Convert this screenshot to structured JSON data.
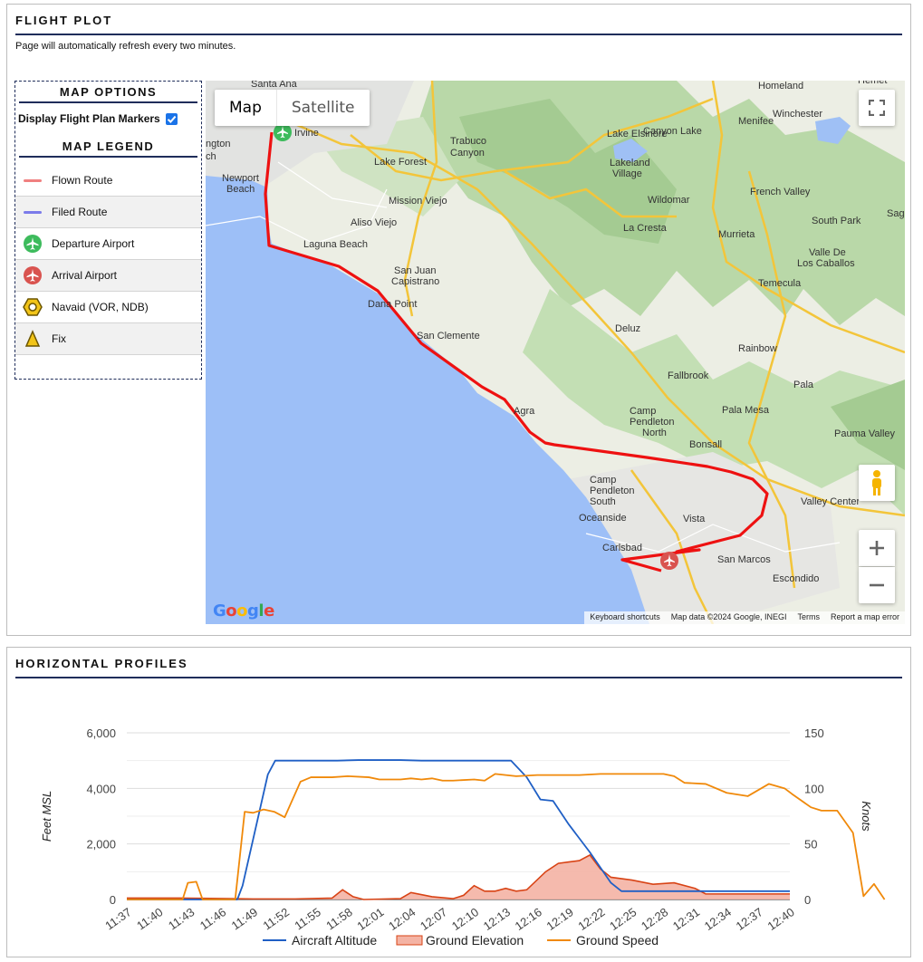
{
  "flight_plot": {
    "title": "FLIGHT PLOT",
    "refresh_note": "Page will automatically refresh every two minutes."
  },
  "sidebar": {
    "options_title": "MAP OPTIONS",
    "display_markers_label": "Display Flight Plan Markers",
    "display_markers_checked": true,
    "legend_title": "MAP LEGEND",
    "legend": [
      {
        "label": "Flown Route",
        "icon": "flown-route-line",
        "color": "#f08080"
      },
      {
        "label": "Filed Route",
        "icon": "filed-route-line",
        "color": "#7b7bea"
      },
      {
        "label": "Departure Airport",
        "icon": "departure-airport-icon",
        "color": "#3dbb5c"
      },
      {
        "label": "Arrival Airport",
        "icon": "arrival-airport-icon",
        "color": "#d9534f"
      },
      {
        "label": "Navaid (VOR, NDB)",
        "icon": "navaid-icon",
        "color": "#f2c418"
      },
      {
        "label": "Fix",
        "icon": "fix-icon",
        "color": "#f2c418"
      }
    ]
  },
  "map": {
    "map_type_options": [
      "Map",
      "Satellite"
    ],
    "selected_map_type": "Map",
    "route_color": "#ee1111",
    "footer": [
      "Keyboard shortcuts",
      "Map data ©2024 Google, INEGI",
      "Terms",
      "Report a map error"
    ],
    "logo_text": "Google",
    "places": [
      "Santa Ana",
      "Irvine",
      "Homeland",
      "Menifee",
      "Winchester",
      "Hemet",
      "Newport Beach",
      "Lake Forest",
      "Trabuco Canyon",
      "Lake Elsinore",
      "Canyon Lake",
      "Lakeland Village",
      "Mission Viejo",
      "Aliso Viejo",
      "Laguna Beach",
      "Wildomar",
      "French Valley",
      "South Park",
      "Lake Forest",
      "La Cresta",
      "Murrieta",
      "Valle De Los Caballos",
      "San Juan Capistrano",
      "Dana Point",
      "Temecula",
      "San Clemente",
      "Deluz",
      "Rainbow",
      "Fallbrook",
      "Pala",
      "Pala Mesa",
      "Camp Pendleton North",
      "Agra",
      "Bonsall",
      "Pauma Valley",
      "Camp Pendleton South",
      "Oceanside",
      "Valley Center",
      "Vista",
      "Carlsbad",
      "San Marcos",
      "Escondido",
      "Sag",
      "ngton",
      "ch"
    ]
  },
  "profiles": {
    "title": "HORIZONTAL PROFILES"
  },
  "chart_data": {
    "type": "line",
    "x": [
      "11:37",
      "11:40",
      "11:43",
      "11:46",
      "11:49",
      "11:52",
      "11:55",
      "11:58",
      "12:01",
      "12:04",
      "12:07",
      "12:10",
      "12:13",
      "12:16",
      "12:19",
      "12:22",
      "12:25",
      "12:28",
      "12:31",
      "12:34",
      "12:37",
      "12:40"
    ],
    "y_left_label": "Feet MSL",
    "y_right_label": "Knots",
    "y_left_ticks": [
      "0",
      "2,000",
      "4,000",
      "6,000"
    ],
    "y_right_ticks": [
      "0",
      "50",
      "100",
      "150"
    ],
    "y_left_range": [
      0,
      6000
    ],
    "y_right_range": [
      0,
      150
    ],
    "series": [
      {
        "name": "Aircraft Altitude",
        "axis": "left",
        "color": "#1f5fc5",
        "points": [
          [
            0,
            0
          ],
          [
            10.5,
            0
          ],
          [
            11.0,
            500
          ],
          [
            13.4,
            4500
          ],
          [
            14.1,
            5000
          ],
          [
            15,
            5000
          ],
          [
            20,
            5000
          ],
          [
            22,
            5020
          ],
          [
            26,
            5020
          ],
          [
            28,
            5000
          ],
          [
            32,
            5000
          ],
          [
            34,
            5000
          ],
          [
            36.5,
            5000
          ],
          [
            38,
            4400
          ],
          [
            39.3,
            3600
          ],
          [
            40.5,
            3550
          ],
          [
            42,
            2700
          ],
          [
            44,
            1700
          ],
          [
            46,
            600
          ],
          [
            47,
            300
          ],
          [
            51,
            300
          ],
          [
            56,
            300
          ],
          [
            63,
            300
          ]
        ]
      },
      {
        "name": "Ground Elevation",
        "axis": "left",
        "color": "#d84315",
        "fill": "#f4b3a4",
        "points": [
          [
            0,
            50
          ],
          [
            5,
            50
          ],
          [
            10,
            30
          ],
          [
            12,
            20
          ],
          [
            16,
            20
          ],
          [
            19.5,
            50
          ],
          [
            20.5,
            350
          ],
          [
            21.5,
            100
          ],
          [
            22.5,
            0
          ],
          [
            26,
            30
          ],
          [
            27,
            250
          ],
          [
            29,
            100
          ],
          [
            31,
            30
          ],
          [
            32,
            150
          ],
          [
            33,
            500
          ],
          [
            34,
            300
          ],
          [
            35,
            300
          ],
          [
            36,
            400
          ],
          [
            37,
            300
          ],
          [
            38,
            350
          ],
          [
            39.8,
            1000
          ],
          [
            41,
            1300
          ],
          [
            42,
            1350
          ],
          [
            43,
            1400
          ],
          [
            44,
            1600
          ],
          [
            45,
            1100
          ],
          [
            46,
            800
          ],
          [
            48,
            700
          ],
          [
            50,
            550
          ],
          [
            52,
            600
          ],
          [
            54,
            400
          ],
          [
            55,
            200
          ],
          [
            63,
            200
          ]
        ]
      },
      {
        "name": "Ground Speed",
        "axis": "right",
        "color": "#f0890a",
        "points": [
          [
            0,
            0
          ],
          [
            5.3,
            0
          ],
          [
            5.8,
            15
          ],
          [
            6.6,
            16
          ],
          [
            7.2,
            0
          ],
          [
            10.3,
            0
          ],
          [
            11.2,
            79
          ],
          [
            12,
            78
          ],
          [
            13,
            81
          ],
          [
            14,
            79
          ],
          [
            15,
            74
          ],
          [
            16.5,
            106
          ],
          [
            17.5,
            110
          ],
          [
            18.5,
            110
          ],
          [
            19.5,
            110
          ],
          [
            21,
            111
          ],
          [
            23,
            110
          ],
          [
            24,
            108
          ],
          [
            26,
            108
          ],
          [
            27,
            109
          ],
          [
            28,
            108
          ],
          [
            29,
            109
          ],
          [
            30,
            107
          ],
          [
            31,
            107
          ],
          [
            33,
            108
          ],
          [
            34,
            107
          ],
          [
            35,
            113
          ],
          [
            36,
            112
          ],
          [
            37,
            111
          ],
          [
            39,
            112
          ],
          [
            41,
            112
          ],
          [
            43,
            112
          ],
          [
            45,
            113
          ],
          [
            47,
            113
          ],
          [
            49,
            113
          ],
          [
            51,
            113
          ],
          [
            52,
            111
          ],
          [
            53,
            105
          ],
          [
            55,
            104
          ],
          [
            57,
            96
          ],
          [
            59,
            93
          ],
          [
            61,
            104
          ],
          [
            62.5,
            100
          ],
          [
            63.2,
            95
          ],
          [
            65,
            83
          ],
          [
            66,
            80
          ],
          [
            67.5,
            80
          ],
          [
            69,
            60
          ],
          [
            70,
            3
          ],
          [
            71,
            14
          ],
          [
            72,
            0
          ],
          [
            63,
            0
          ]
        ]
      }
    ],
    "x_max": 63
  }
}
